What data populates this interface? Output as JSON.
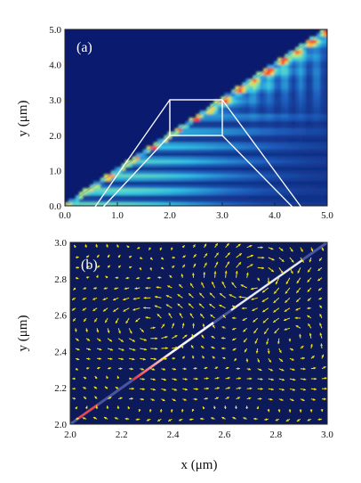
{
  "chart_data": [
    {
      "type": "heatmap",
      "panel_label": "(a)",
      "xlim": [
        0.0,
        5.0
      ],
      "ylim": [
        0.0,
        5.0
      ],
      "x_ticks": [
        "0.0",
        "1.0",
        "2.0",
        "3.0",
        "4.0",
        "5.0"
      ],
      "y_ticks": [
        "0.0",
        "1.0",
        "2.0",
        "3.0",
        "4.0",
        "5.0"
      ],
      "xlabel": "",
      "ylabel": "y (μm)",
      "colormap": [
        "#0a1a6e",
        "#1f5fbf",
        "#33c6e6",
        "#9ff08a",
        "#ffd23a",
        "#ff3a1a"
      ],
      "diagonal_interface": [
        [
          0.0,
          0.0
        ],
        [
          5.0,
          5.0
        ]
      ],
      "zoom_region": {
        "x": [
          2.0,
          3.0
        ],
        "y": [
          2.0,
          3.0
        ]
      }
    },
    {
      "type": "scatter",
      "panel_label": "(b)",
      "subtype": "vector-field",
      "xlim": [
        2.0,
        3.0
      ],
      "ylim": [
        2.0,
        3.0
      ],
      "x_ticks": [
        "2.0",
        "2.2",
        "2.4",
        "2.6",
        "2.8",
        "3.0"
      ],
      "y_ticks": [
        "2.0",
        "2.2",
        "2.4",
        "2.6",
        "2.8",
        "3.0"
      ],
      "xlabel": "x (μm)",
      "ylabel": "y (μm)",
      "arrow_color": "#f2e21a",
      "background_color": "#0d1a5a",
      "vortex_centers": [
        [
          2.3,
          2.56
        ],
        [
          2.72,
          2.8
        ],
        [
          2.85,
          2.5
        ]
      ]
    }
  ]
}
